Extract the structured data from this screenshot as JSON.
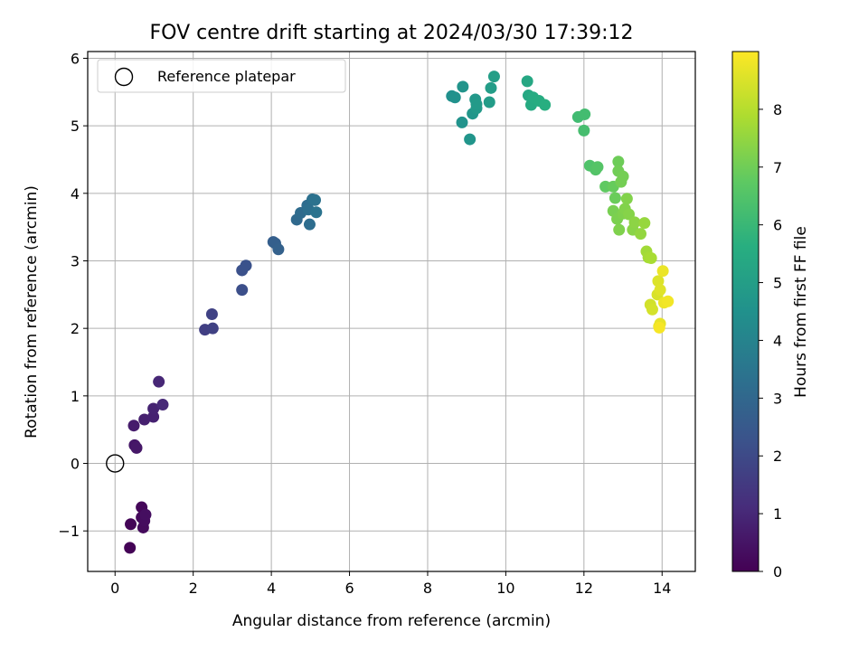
{
  "chart_data": {
    "type": "scatter",
    "title": "FOV centre drift starting at 2024/03/30 17:39:12",
    "xlabel": "Angular distance from reference (arcmin)",
    "ylabel": "Rotation from reference (arcmin)",
    "xlim": [
      -0.7,
      14.85
    ],
    "ylim": [
      -1.6,
      6.1
    ],
    "xticks": [
      0,
      2,
      4,
      6,
      8,
      10,
      12,
      14
    ],
    "yticks": [
      -1,
      0,
      1,
      2,
      3,
      4,
      5,
      6
    ],
    "grid": true,
    "legend": {
      "position": "top-left",
      "entries": [
        "Reference platepar"
      ]
    },
    "reference_point": {
      "x": 0,
      "y": 0
    },
    "colorbar": {
      "label": "Hours from first FF file",
      "range": [
        0,
        9
      ],
      "ticks": [
        0,
        1,
        2,
        3,
        4,
        5,
        6,
        7,
        8
      ],
      "colormap": "viridis"
    },
    "points": [
      {
        "x": 0.38,
        "y": -1.25,
        "c": 0.05
      },
      {
        "x": 0.4,
        "y": -0.9,
        "c": 0.1
      },
      {
        "x": 0.68,
        "y": -0.65,
        "c": 0.15
      },
      {
        "x": 0.68,
        "y": -0.8,
        "c": 0.2
      },
      {
        "x": 0.72,
        "y": -0.95,
        "c": 0.25
      },
      {
        "x": 0.75,
        "y": -0.85,
        "c": 0.3
      },
      {
        "x": 0.78,
        "y": -0.76,
        "c": 0.35
      },
      {
        "x": 0.5,
        "y": 0.27,
        "c": 0.55
      },
      {
        "x": 0.55,
        "y": 0.23,
        "c": 0.6
      },
      {
        "x": 0.48,
        "y": 0.56,
        "c": 0.7
      },
      {
        "x": 0.75,
        "y": 0.65,
        "c": 0.8
      },
      {
        "x": 0.98,
        "y": 0.69,
        "c": 0.85
      },
      {
        "x": 0.98,
        "y": 0.81,
        "c": 0.9
      },
      {
        "x": 1.12,
        "y": 1.21,
        "c": 1.0
      },
      {
        "x": 1.22,
        "y": 0.87,
        "c": 1.05
      },
      {
        "x": 2.3,
        "y": 1.98,
        "c": 1.7
      },
      {
        "x": 2.5,
        "y": 2.0,
        "c": 1.75
      },
      {
        "x": 2.48,
        "y": 2.21,
        "c": 1.8
      },
      {
        "x": 3.25,
        "y": 2.57,
        "c": 2.2
      },
      {
        "x": 3.25,
        "y": 2.86,
        "c": 2.25
      },
      {
        "x": 3.35,
        "y": 2.93,
        "c": 2.3
      },
      {
        "x": 4.05,
        "y": 3.28,
        "c": 2.7
      },
      {
        "x": 4.1,
        "y": 3.26,
        "c": 2.75
      },
      {
        "x": 4.18,
        "y": 3.17,
        "c": 2.8
      },
      {
        "x": 4.65,
        "y": 3.61,
        "c": 3.1
      },
      {
        "x": 4.75,
        "y": 3.71,
        "c": 3.15
      },
      {
        "x": 4.92,
        "y": 3.82,
        "c": 3.2
      },
      {
        "x": 4.98,
        "y": 3.54,
        "c": 3.25
      },
      {
        "x": 4.95,
        "y": 3.76,
        "c": 3.3
      },
      {
        "x": 5.05,
        "y": 3.91,
        "c": 3.35
      },
      {
        "x": 5.12,
        "y": 3.9,
        "c": 3.4
      },
      {
        "x": 5.15,
        "y": 3.72,
        "c": 3.45
      },
      {
        "x": 8.62,
        "y": 5.44,
        "c": 4.5
      },
      {
        "x": 8.7,
        "y": 5.42,
        "c": 4.55
      },
      {
        "x": 8.88,
        "y": 5.05,
        "c": 4.6
      },
      {
        "x": 8.9,
        "y": 5.58,
        "c": 4.65
      },
      {
        "x": 9.08,
        "y": 4.8,
        "c": 4.7
      },
      {
        "x": 9.15,
        "y": 5.18,
        "c": 4.75
      },
      {
        "x": 9.22,
        "y": 5.39,
        "c": 4.8
      },
      {
        "x": 9.25,
        "y": 5.26,
        "c": 4.85
      },
      {
        "x": 9.25,
        "y": 5.32,
        "c": 4.9
      },
      {
        "x": 9.58,
        "y": 5.35,
        "c": 4.95
      },
      {
        "x": 9.62,
        "y": 5.56,
        "c": 5.0
      },
      {
        "x": 9.7,
        "y": 5.73,
        "c": 5.05
      },
      {
        "x": 10.55,
        "y": 5.66,
        "c": 5.4
      },
      {
        "x": 10.58,
        "y": 5.45,
        "c": 5.45
      },
      {
        "x": 10.65,
        "y": 5.31,
        "c": 5.5
      },
      {
        "x": 10.7,
        "y": 5.42,
        "c": 5.55
      },
      {
        "x": 10.85,
        "y": 5.37,
        "c": 5.6
      },
      {
        "x": 11.0,
        "y": 5.31,
        "c": 5.65
      },
      {
        "x": 11.85,
        "y": 5.13,
        "c": 6.2
      },
      {
        "x": 12.02,
        "y": 5.17,
        "c": 6.25
      },
      {
        "x": 12.0,
        "y": 4.93,
        "c": 6.3
      },
      {
        "x": 12.15,
        "y": 4.41,
        "c": 6.5
      },
      {
        "x": 12.3,
        "y": 4.35,
        "c": 6.55
      },
      {
        "x": 12.35,
        "y": 4.39,
        "c": 6.6
      },
      {
        "x": 12.55,
        "y": 4.1,
        "c": 6.8
      },
      {
        "x": 12.75,
        "y": 4.1,
        "c": 6.9
      },
      {
        "x": 12.8,
        "y": 3.93,
        "c": 6.95
      },
      {
        "x": 12.88,
        "y": 4.47,
        "c": 7.0
      },
      {
        "x": 12.88,
        "y": 4.33,
        "c": 7.05
      },
      {
        "x": 12.95,
        "y": 4.17,
        "c": 7.1
      },
      {
        "x": 13.0,
        "y": 4.25,
        "c": 7.1
      },
      {
        "x": 12.75,
        "y": 3.74,
        "c": 7.15
      },
      {
        "x": 12.85,
        "y": 3.62,
        "c": 7.2
      },
      {
        "x": 12.9,
        "y": 3.46,
        "c": 7.25
      },
      {
        "x": 13.0,
        "y": 3.7,
        "c": 7.25
      },
      {
        "x": 13.05,
        "y": 3.77,
        "c": 7.3
      },
      {
        "x": 13.1,
        "y": 3.92,
        "c": 7.3
      },
      {
        "x": 13.15,
        "y": 3.69,
        "c": 7.35
      },
      {
        "x": 13.25,
        "y": 3.46,
        "c": 7.4
      },
      {
        "x": 13.3,
        "y": 3.57,
        "c": 7.45
      },
      {
        "x": 13.45,
        "y": 3.4,
        "c": 7.55
      },
      {
        "x": 13.55,
        "y": 3.56,
        "c": 7.6
      },
      {
        "x": 13.6,
        "y": 3.14,
        "c": 7.75
      },
      {
        "x": 13.65,
        "y": 3.05,
        "c": 7.8
      },
      {
        "x": 13.72,
        "y": 3.04,
        "c": 7.85
      },
      {
        "x": 13.7,
        "y": 2.35,
        "c": 8.4
      },
      {
        "x": 13.75,
        "y": 2.28,
        "c": 8.45
      },
      {
        "x": 13.88,
        "y": 2.5,
        "c": 8.5
      },
      {
        "x": 13.9,
        "y": 2.7,
        "c": 8.55
      },
      {
        "x": 13.95,
        "y": 2.57,
        "c": 8.6
      },
      {
        "x": 13.92,
        "y": 2.03,
        "c": 8.65
      },
      {
        "x": 13.95,
        "y": 2.07,
        "c": 8.7
      },
      {
        "x": 14.02,
        "y": 2.85,
        "c": 8.75
      },
      {
        "x": 14.05,
        "y": 2.38,
        "c": 8.8
      },
      {
        "x": 14.15,
        "y": 2.4,
        "c": 8.85
      },
      {
        "x": 13.93,
        "y": 2.01,
        "c": 8.9
      }
    ]
  }
}
